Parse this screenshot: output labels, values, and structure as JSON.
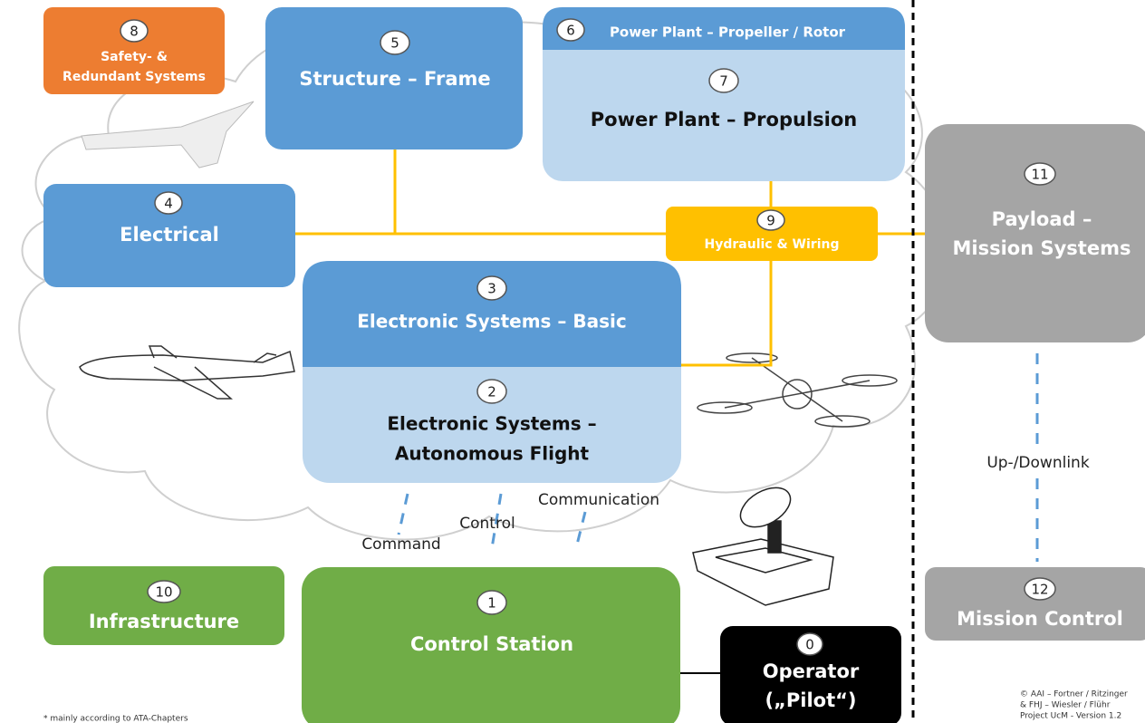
{
  "nodes": [
    {
      "number": "0",
      "lines": [
        "Operator",
        "(„Pilot“)"
      ]
    },
    {
      "number": "1",
      "lines": [
        "Control Station"
      ]
    },
    {
      "number": "2",
      "lines": [
        "Electronic Systems –",
        "Autonomous Flight"
      ]
    },
    {
      "number": "3",
      "lines": [
        "Electronic Systems – Basic"
      ]
    },
    {
      "number": "4",
      "lines": [
        "Electrical"
      ]
    },
    {
      "number": "5",
      "lines": [
        "Structure – Frame"
      ]
    },
    {
      "number": "6",
      "lines": [
        "Power Plant – Propeller / Rotor"
      ]
    },
    {
      "number": "7",
      "lines": [
        "Power Plant – Propulsion"
      ]
    },
    {
      "number": "8",
      "lines": [
        "Safety- &",
        "Redundant Systems"
      ]
    },
    {
      "number": "9",
      "lines": [
        "Hydraulic & Wiring"
      ]
    },
    {
      "number": "10",
      "lines": [
        "Infrastructure"
      ]
    },
    {
      "number": "11",
      "lines": [
        "Payload –",
        "Mission Systems"
      ]
    },
    {
      "number": "12",
      "lines": [
        "Mission Control"
      ]
    }
  ],
  "links": {
    "command": "Command",
    "control": "Control",
    "communication": "Communication",
    "uplink": "Up-/Downlink"
  },
  "footnote": "* mainly according to ATA-Chapters",
  "credits": [
    "© AAI – Fortner / Ritzinger",
    "& FHJ – Wiesler / Flühr",
    "Project UcM - Version 1.2"
  ]
}
